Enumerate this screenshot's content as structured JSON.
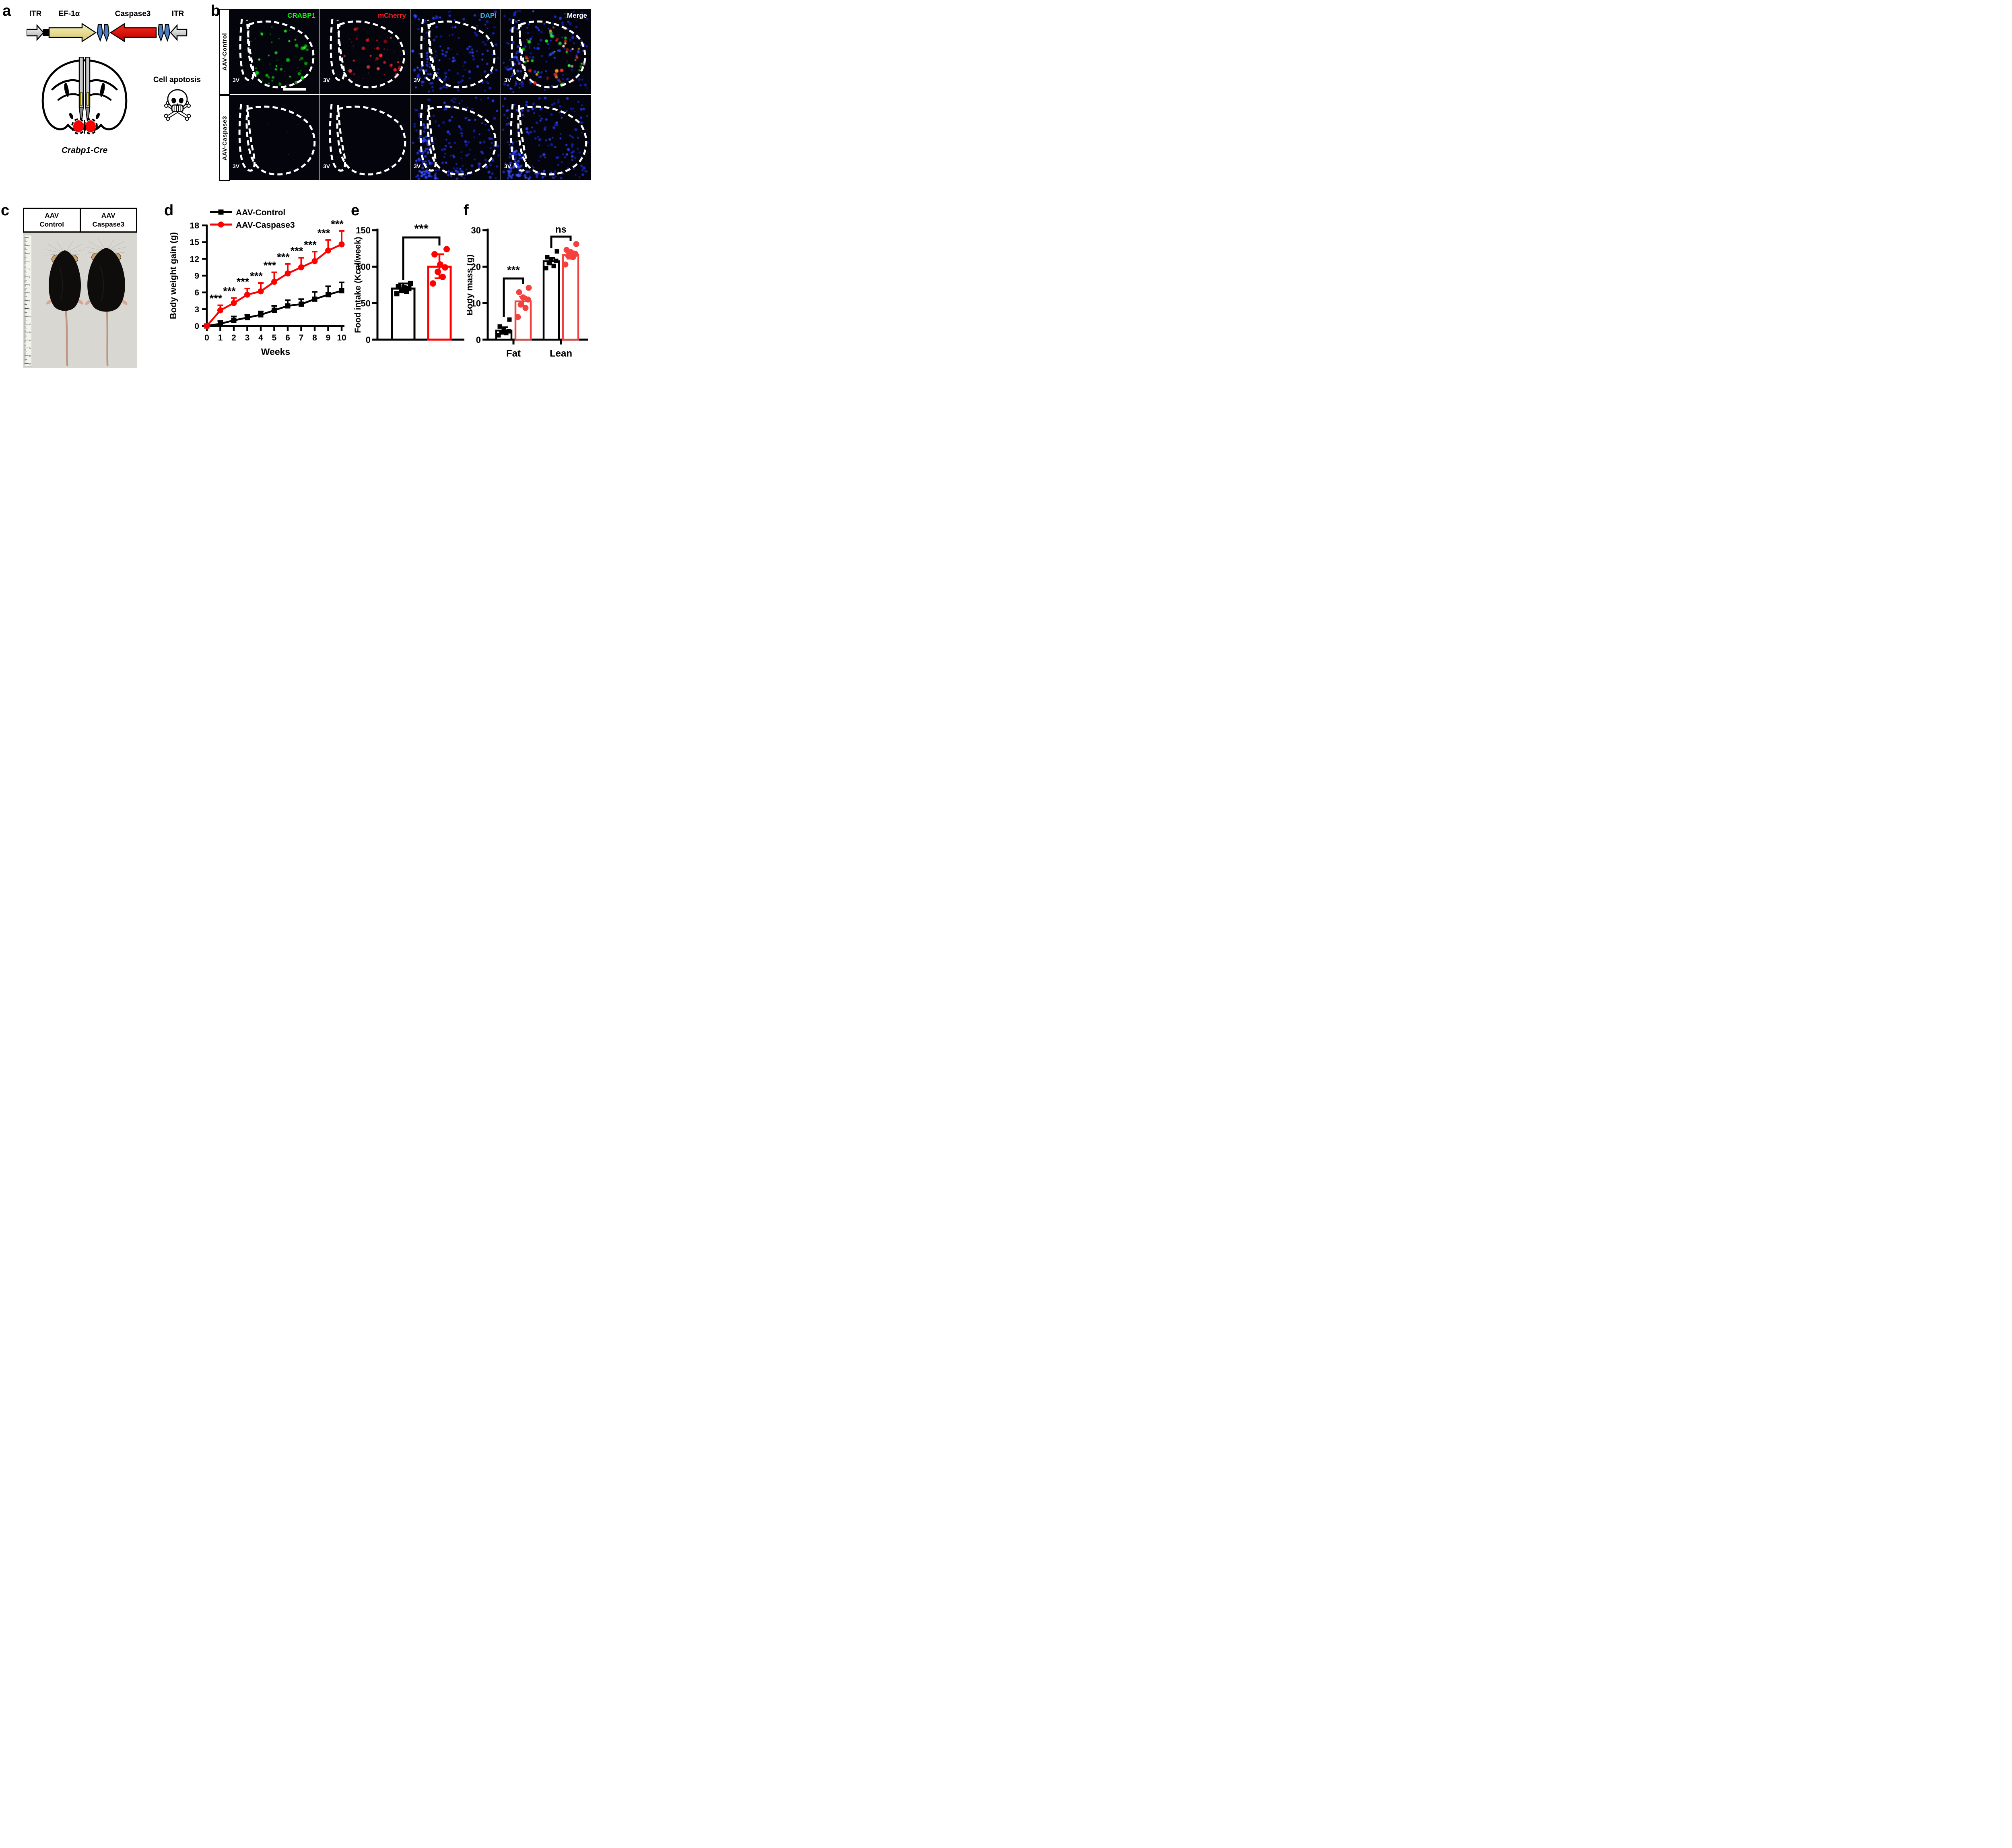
{
  "panels": {
    "a": "a",
    "b": "b",
    "c": "c",
    "d": "d",
    "e": "e",
    "f": "f"
  },
  "panel_a": {
    "construct_labels": [
      "ITR",
      "EF-1α",
      "Caspase3",
      "ITR"
    ],
    "cre_label": "Crabp1-Cre",
    "apoptosis_label": "Cell apotosis",
    "colors": {
      "itr_arrow": "#c9c9c9",
      "ef1a_arrow": "#e2d88a",
      "caspase3_arrow": "#e60000",
      "lox_arrow": "#4d7ec8",
      "injection_site": "#ff0000",
      "cannula_stripe": "#ffe800"
    }
  },
  "panel_b": {
    "rows": [
      {
        "label": "AAV-Control",
        "has_green": true,
        "has_red": true
      },
      {
        "label": "AAV-Caspase3",
        "has_green": false,
        "has_red": false
      }
    ],
    "channels": [
      {
        "label": "CRABP1",
        "color": "#00ff00"
      },
      {
        "label": "mCherry",
        "color": "#ff2020"
      },
      {
        "label": "DAPI",
        "color": "#3cb4e8"
      },
      {
        "label": "Merge",
        "color": "#ffffff"
      }
    ],
    "ventricle_label": "3V",
    "dot_colors": {
      "green": [
        "#00d400",
        "#12ff12",
        "#33ff33",
        "#00b000"
      ],
      "red": [
        "#e01818",
        "#ff2a2a",
        "#ff4545",
        "#c01010"
      ],
      "blue": [
        "#1626d8",
        "#2236f0",
        "#3346ff",
        "#0d1cb0"
      ],
      "blue_bright": [
        "#2e46ff",
        "#4056ff",
        "#2030e8"
      ],
      "orange": [
        "#ff9020",
        "#ffb040"
      ],
      "white": [
        "#ffe0c0",
        "#ffd0e0"
      ]
    }
  },
  "panel_c": {
    "headers": [
      {
        "line1": "AAV",
        "line2": "Control"
      },
      {
        "line1": "AAV",
        "line2": "Caspase3"
      }
    ],
    "ruler_numbers": [
      "1",
      "2",
      "3",
      "4",
      "5",
      "6",
      "7",
      "8",
      "9",
      "10",
      "11",
      "12",
      "13",
      "14",
      "15",
      "16"
    ]
  },
  "chart_data": [
    {
      "panel": "d",
      "type": "line",
      "xlabel": "Weeks",
      "ylabel": "Body weight gain (g)",
      "x": [
        0,
        1,
        2,
        3,
        4,
        5,
        6,
        7,
        8,
        9,
        10
      ],
      "yticks": [
        0,
        3,
        6,
        9,
        12,
        15,
        18
      ],
      "ylim": [
        0,
        18
      ],
      "series": [
        {
          "name": "AAV-Control",
          "color": "#000000",
          "marker": "square",
          "values": [
            0,
            0.4,
            1.0,
            1.5,
            2.0,
            2.8,
            3.6,
            3.9,
            4.8,
            5.6,
            6.3
          ],
          "errors": [
            0.2,
            0.5,
            0.7,
            0.5,
            0.6,
            0.8,
            1.0,
            0.9,
            1.3,
            1.5,
            1.5
          ]
        },
        {
          "name": "AAV-Caspase3",
          "color": "#ff0000",
          "marker": "circle",
          "values": [
            0,
            2.8,
            4.1,
            5.6,
            6.2,
            7.9,
            9.4,
            10.5,
            11.6,
            13.5,
            14.6
          ],
          "errors": [
            0,
            0.9,
            0.9,
            1.1,
            1.5,
            1.7,
            1.7,
            1.7,
            1.7,
            1.9,
            2.4
          ]
        }
      ],
      "significance": {
        "symbol": "***",
        "at_weeks": [
          1,
          2,
          3,
          4,
          5,
          6,
          7,
          8,
          9,
          10
        ]
      },
      "legend_position": "top-left",
      "grid": false
    },
    {
      "panel": "e",
      "type": "bar",
      "ylabel": "Food intake (Kcal/week)",
      "yticks": [
        0,
        50,
        100,
        150
      ],
      "ylim": [
        0,
        150
      ],
      "bars": [
        {
          "name": "AAV-Control",
          "color": "#000000",
          "marker": "square",
          "value": 70,
          "err_low": 65,
          "err_high": 77,
          "points": [
            63,
            66,
            68,
            70,
            71,
            73,
            77
          ]
        },
        {
          "name": "AAV-Caspase3",
          "color": "#ff0000",
          "marker": "circle",
          "value": 100,
          "err_low": 84,
          "err_high": 117,
          "points": [
            77,
            86,
            93,
            99,
            103,
            117,
            124
          ]
        }
      ],
      "significance": "***"
    },
    {
      "panel": "f",
      "type": "bar",
      "ylabel": "Body mass (g)",
      "yticks": [
        0,
        10,
        20,
        30
      ],
      "ylim": [
        0,
        30
      ],
      "groups": [
        {
          "label": "Fat",
          "significance": "***",
          "bars": [
            {
              "name": "AAV-Control",
              "color": "#000000",
              "marker": "square",
              "value": 2.5,
              "err_low": 1.6,
              "err_high": 3.4,
              "points": [
                1.2,
                1.8,
                2.1,
                2.3,
                2.6,
                3.6,
                5.5
              ]
            },
            {
              "name": "AAV-Caspase3",
              "color": "#f5413d",
              "marker": "circle",
              "value": 10.5,
              "err_low": 9.3,
              "err_high": 11.8,
              "points": [
                6.2,
                8.7,
                9.6,
                11.0,
                11.6,
                13.0,
                14.2
              ]
            }
          ]
        },
        {
          "label": "Lean",
          "significance": "ns",
          "bars": [
            {
              "name": "AAV-Control",
              "color": "#000000",
              "marker": "square",
              "value": 21.5,
              "err_low": 20.6,
              "err_high": 22.4,
              "points": [
                19.6,
                20.2,
                21.0,
                21.6,
                22.1,
                22.6,
                24.2
              ]
            },
            {
              "name": "AAV-Caspase3",
              "color": "#f5413d",
              "marker": "circle",
              "value": 23.2,
              "err_low": 22.2,
              "err_high": 24.2,
              "points": [
                20.6,
                22.6,
                23.0,
                23.5,
                24.0,
                24.6,
                26.2
              ]
            }
          ]
        }
      ]
    }
  ]
}
